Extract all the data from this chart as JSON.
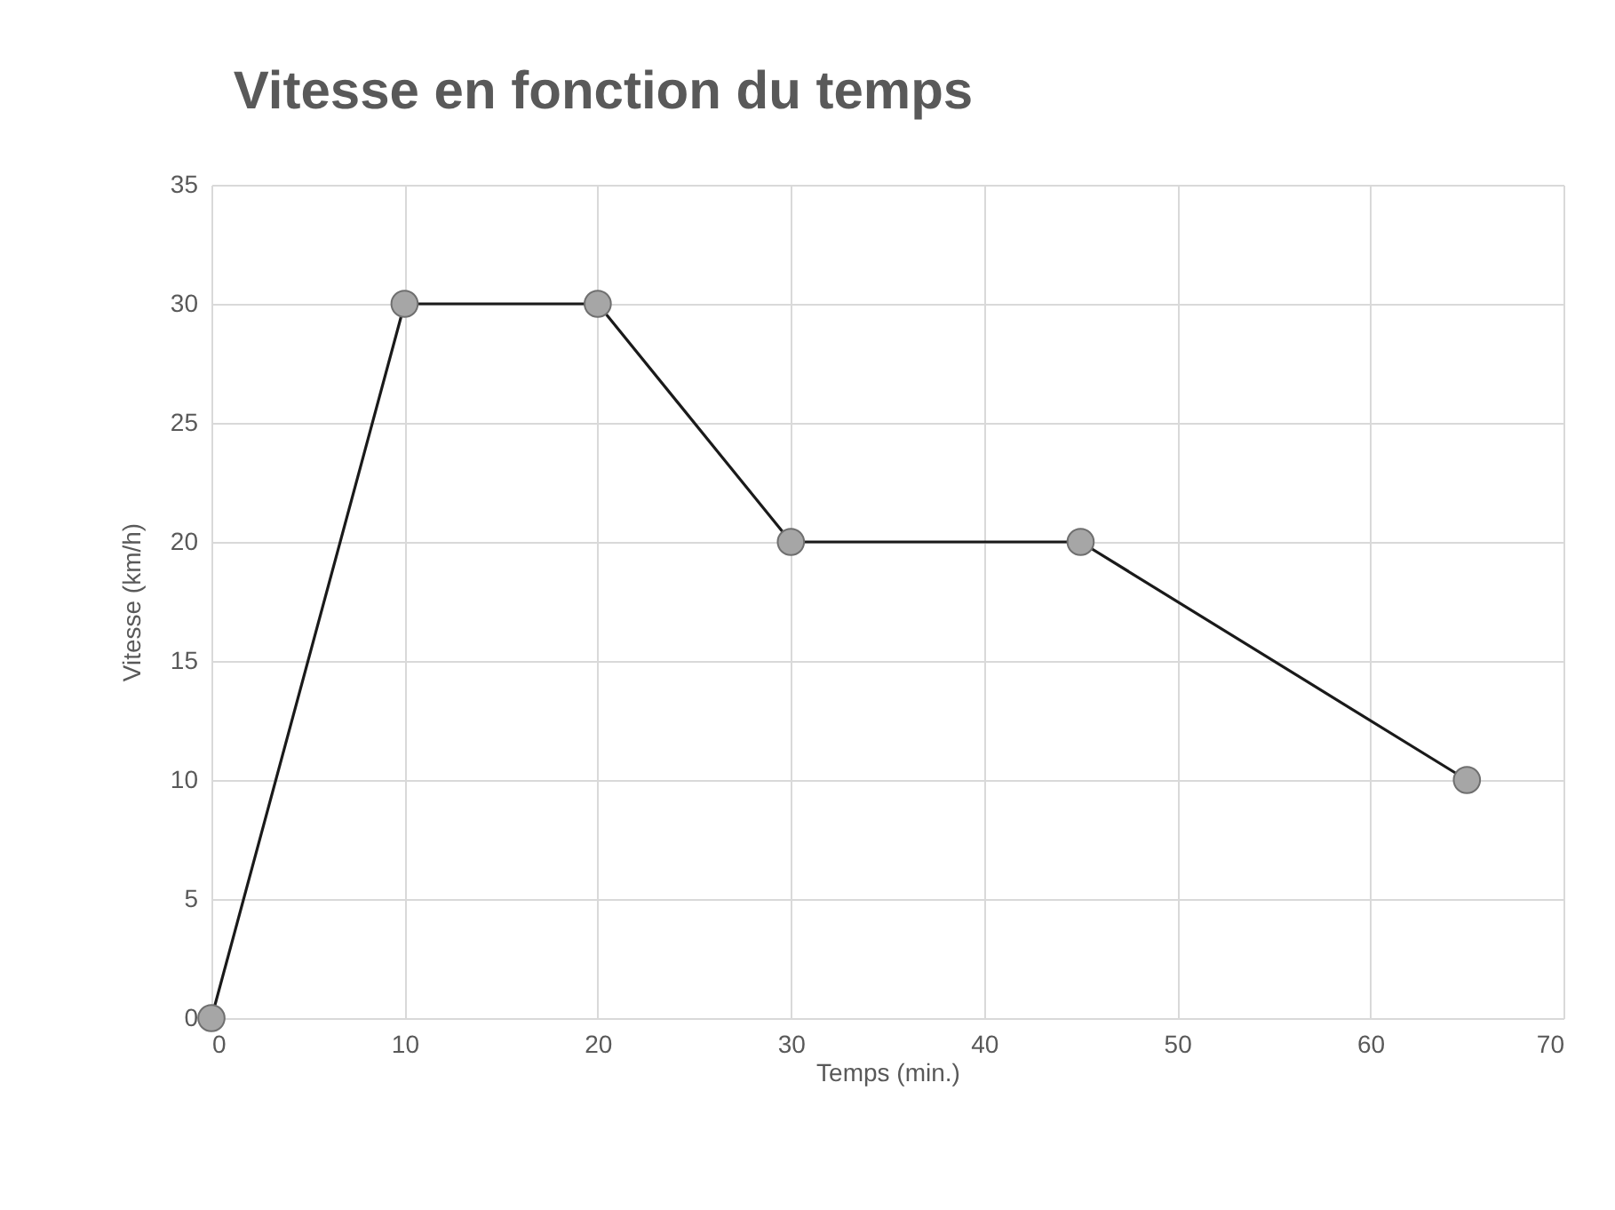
{
  "chart_data": {
    "type": "line",
    "title": "Vitesse en fonction du temps",
    "xlabel": "Temps (min.)",
    "ylabel": "Vitesse (km/h)",
    "x": [
      0,
      10,
      20,
      30,
      45,
      65
    ],
    "series": [
      {
        "color": "#1a1a1a",
        "values": [
          0,
          30,
          30,
          20,
          20,
          10
        ]
      }
    ],
    "xlim": [
      0,
      70
    ],
    "xticks": [
      0,
      10,
      20,
      30,
      40,
      50,
      60,
      70
    ],
    "ylim": [
      0,
      35
    ],
    "yticks": [
      0,
      5,
      10,
      15,
      20,
      25,
      30,
      35
    ],
    "grid": true,
    "marker": "circle",
    "line_style": "solid"
  }
}
